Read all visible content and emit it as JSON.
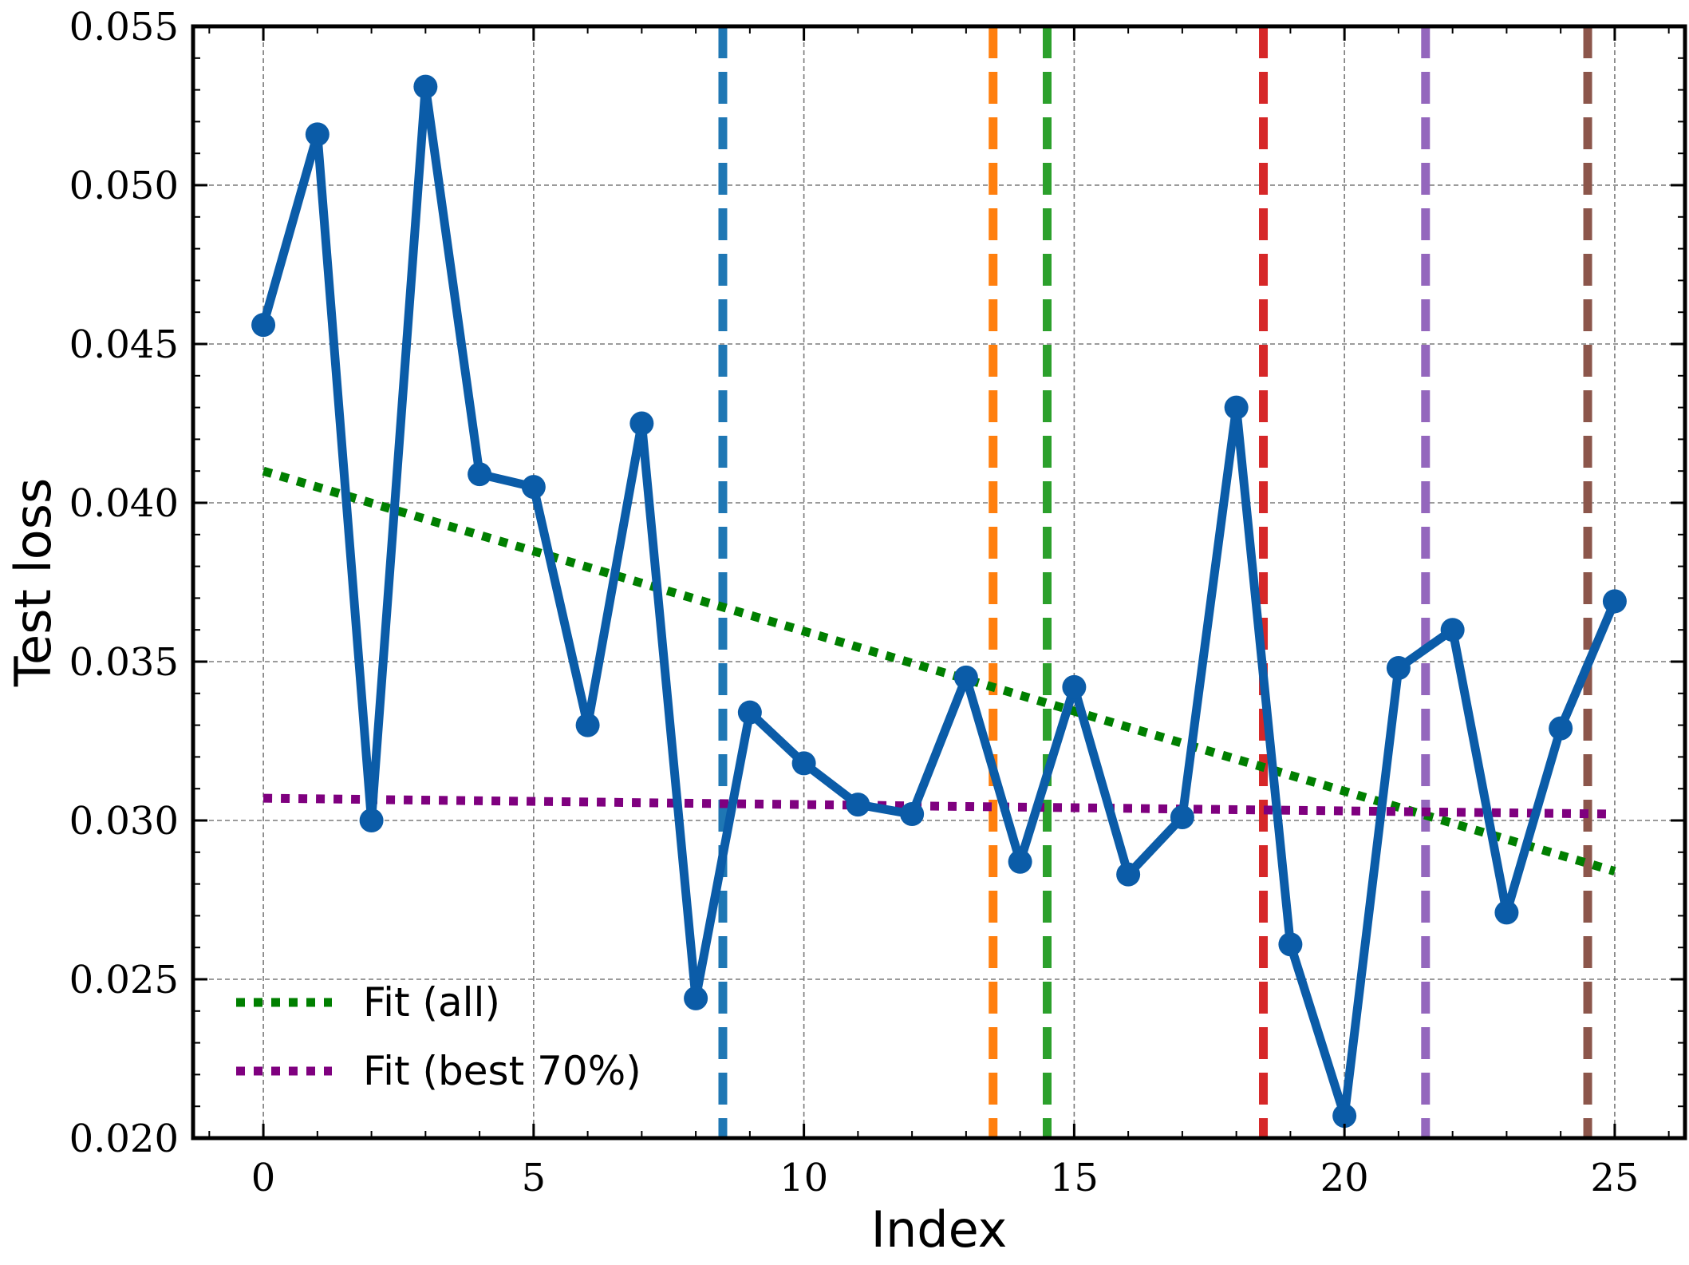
{
  "chart_data": {
    "type": "line",
    "xlabel": "Index",
    "ylabel": "Test loss",
    "xlim": [
      -1.3,
      26.3
    ],
    "ylim": [
      0.02,
      0.055
    ],
    "grid": true,
    "x_ticks": [
      0,
      5,
      10,
      15,
      20,
      25
    ],
    "x_tick_labels": [
      "0",
      "5",
      "10",
      "15",
      "20",
      "25"
    ],
    "y_ticks": [
      0.02,
      0.025,
      0.03,
      0.035,
      0.04,
      0.045,
      0.05,
      0.055
    ],
    "y_tick_labels": [
      "0.020",
      "0.025",
      "0.030",
      "0.035",
      "0.040",
      "0.045",
      "0.050",
      "0.055"
    ],
    "series": [
      {
        "name": "Test loss",
        "color": "#0b5ca8",
        "x": [
          0,
          1,
          2,
          3,
          4,
          5,
          6,
          7,
          8,
          9,
          10,
          11,
          12,
          13,
          14,
          15,
          16,
          17,
          18,
          19,
          20,
          21,
          22,
          23,
          24,
          25
        ],
        "values": [
          0.0456,
          0.0516,
          0.03,
          0.0531,
          0.0409,
          0.0405,
          0.033,
          0.0425,
          0.0244,
          0.0334,
          0.0318,
          0.0305,
          0.0302,
          0.0345,
          0.0287,
          0.0342,
          0.0283,
          0.0301,
          0.043,
          0.0261,
          0.0207,
          0.0348,
          0.036,
          0.0271,
          0.0329,
          0.0369
        ]
      }
    ],
    "fits": [
      {
        "name": "Fit (all)",
        "label": "Fit (all)",
        "color": "#007f00",
        "x": [
          0,
          25
        ],
        "values": [
          0.041,
          0.0284
        ]
      },
      {
        "name": "Fit (best 70%)",
        "label": "Fit (best 70%)",
        "color": "#7f007f",
        "x": [
          0,
          25
        ],
        "values": [
          0.0307,
          0.0302
        ]
      }
    ],
    "vertical_lines": [
      {
        "x": 8.5,
        "color": "#1f77b4"
      },
      {
        "x": 13.5,
        "color": "#ff7f0e"
      },
      {
        "x": 14.5,
        "color": "#2ca02c"
      },
      {
        "x": 18.5,
        "color": "#d62728"
      },
      {
        "x": 21.5,
        "color": "#9467bd"
      },
      {
        "x": 24.5,
        "color": "#8c564b"
      }
    ],
    "legend": {
      "position": "lower-left",
      "entries": [
        {
          "label": "Fit (all)",
          "color": "#007f00"
        },
        {
          "label": "Fit (best 70%)",
          "color": "#7f007f"
        }
      ]
    }
  }
}
